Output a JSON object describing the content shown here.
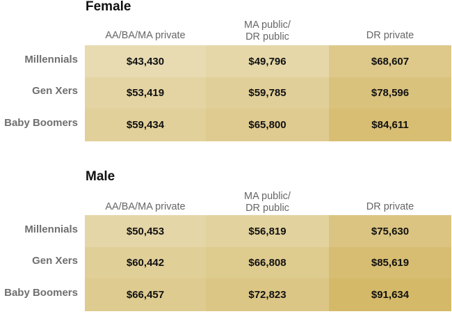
{
  "chart_data": [
    {
      "type": "heatmap",
      "title": "Female",
      "columns": [
        "AA/BA/MA private",
        "MA public/ DR public",
        "DR private"
      ],
      "rows": [
        "Millennials",
        "Gen Xers",
        "Baby Boomers"
      ],
      "values": [
        [
          43430,
          49796,
          68607
        ],
        [
          53419,
          59785,
          78596
        ],
        [
          59434,
          65800,
          84611
        ]
      ],
      "labels": [
        [
          "$43,430",
          "$49,796",
          "$68,607"
        ],
        [
          "$53,419",
          "$59,785",
          "$78,596"
        ],
        [
          "$59,434",
          "$65,800",
          "$84,611"
        ]
      ]
    },
    {
      "type": "heatmap",
      "title": "Male",
      "columns": [
        "AA/BA/MA private",
        "MA public/ DR public",
        "DR private"
      ],
      "rows": [
        "Millennials",
        "Gen Xers",
        "Baby Boomers"
      ],
      "values": [
        [
          50453,
          56819,
          75630
        ],
        [
          60442,
          66808,
          85619
        ],
        [
          66457,
          72823,
          91634
        ]
      ],
      "labels": [
        [
          "$50,453",
          "$56,819",
          "$75,630"
        ],
        [
          "$60,442",
          "$66,808",
          "$85,619"
        ],
        [
          "$66,457",
          "$72,823",
          "$91,634"
        ]
      ]
    }
  ],
  "colors": {
    "low": "#e8dbb2",
    "high": "#d4b968"
  }
}
